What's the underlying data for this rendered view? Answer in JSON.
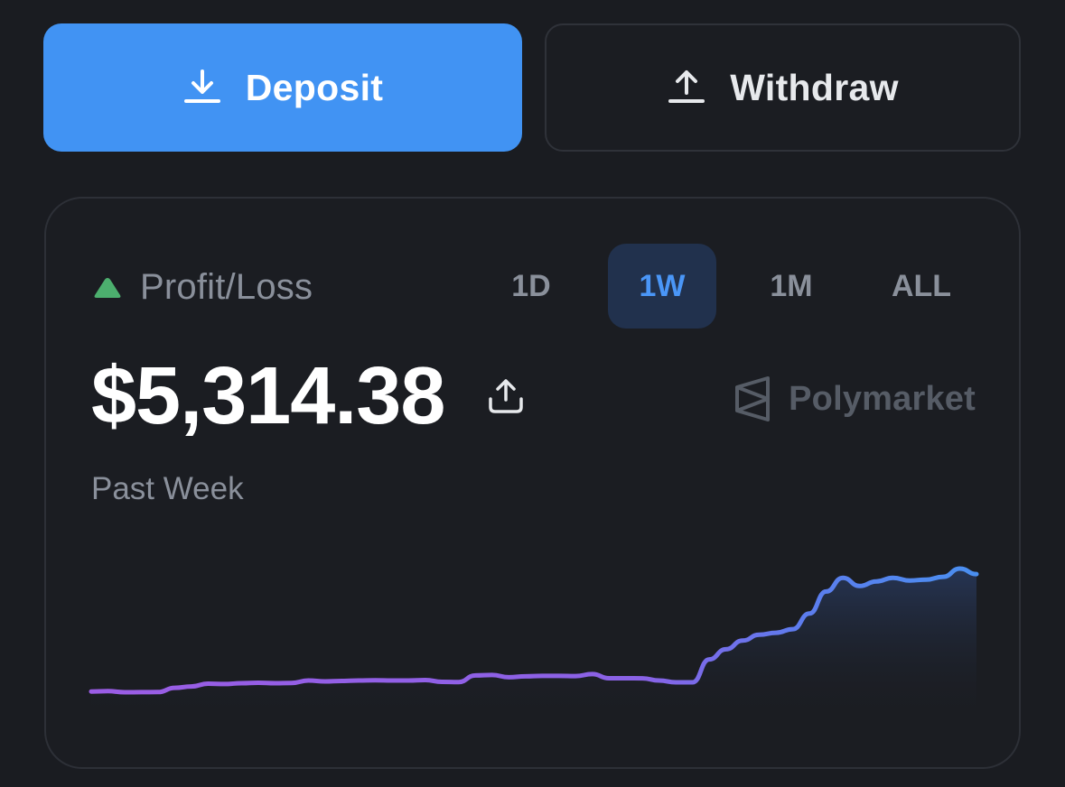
{
  "actions": {
    "deposit_label": "Deposit",
    "withdraw_label": "Withdraw"
  },
  "card": {
    "pnl_label": "Profit/Loss",
    "trend_direction": "up",
    "tabs": [
      {
        "label": "1D",
        "active": false
      },
      {
        "label": "1W",
        "active": true
      },
      {
        "label": "1M",
        "active": false
      },
      {
        "label": "ALL",
        "active": false
      }
    ],
    "amount": "$5,314.38",
    "brand": "Polymarket",
    "period_label": "Past Week"
  },
  "colors": {
    "background": "#1a1c21",
    "deposit_accent": "#4193f3",
    "up_triangle": "#4caf6e",
    "tab_active_bg": "#21314d",
    "tab_active_text": "#4a96f7",
    "line_start": "#9b5de5",
    "line_end": "#4a8ff0"
  },
  "icons": {
    "deposit": "download-icon",
    "withdraw": "upload-icon",
    "share": "share-icon",
    "brand": "polymarket-logo-icon",
    "trend": "triangle-up-icon"
  },
  "chart_data": {
    "type": "area",
    "series": [
      {
        "values": [
          0,
          0.4,
          -0.8,
          -0.7,
          -0.6,
          4,
          5.5,
          8.5,
          8.2,
          9,
          9.5,
          9,
          9.3,
          12,
          11,
          11.5,
          12,
          12.2,
          12,
          12,
          12.5,
          10.5,
          10.3,
          17.5,
          18,
          15.5,
          16.5,
          17,
          17,
          16.8,
          19,
          14.5,
          14.5,
          14.4,
          12,
          10,
          10,
          35,
          46,
          55.5,
          62,
          64,
          68,
          85,
          109,
          124,
          115,
          120,
          124,
          121,
          122,
          125,
          134,
          128
        ]
      }
    ]
  }
}
